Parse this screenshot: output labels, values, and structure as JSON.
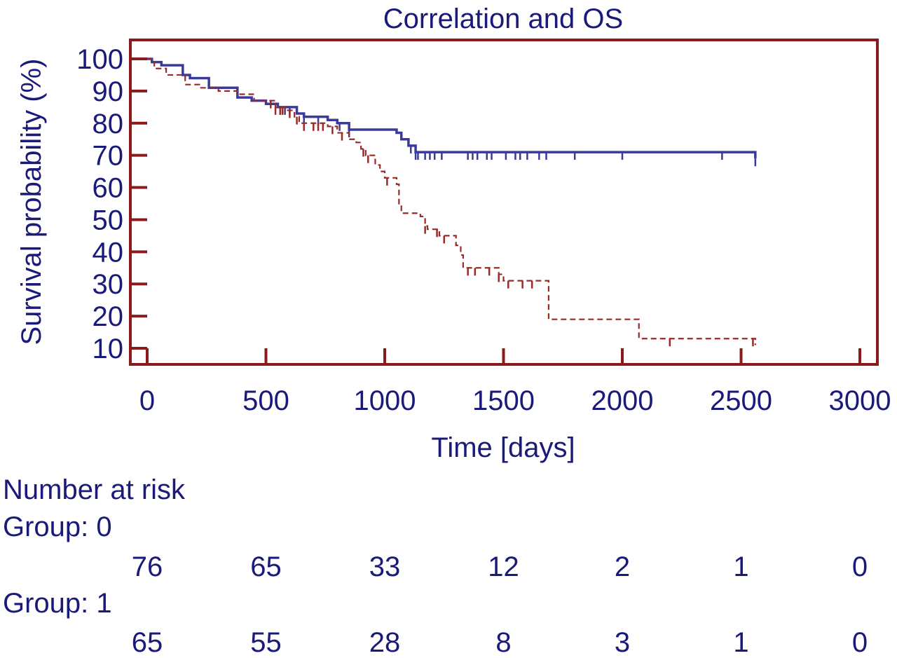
{
  "chart_data": {
    "type": "line",
    "title": "Correlation and OS",
    "xlabel": "Time [days]",
    "ylabel": "Survival probability (%)",
    "xlim": [
      0,
      3000
    ],
    "ylim": [
      5,
      102
    ],
    "x_ticks": [
      "0",
      "500",
      "1000",
      "1500",
      "2000",
      "2500",
      "3000"
    ],
    "y_ticks": [
      "100",
      "90",
      "80",
      "70",
      "60",
      "50",
      "40",
      "30",
      "20",
      "10"
    ],
    "grid": false,
    "colors": {
      "axis": "#8b1a1a",
      "text": "#1a1a7a",
      "group0": "#3a3a9a",
      "group1": "#9a2a2a"
    },
    "series": [
      {
        "line_style": "solid",
        "steps": [
          [
            0,
            100
          ],
          [
            20,
            99
          ],
          [
            60,
            98
          ],
          [
            150,
            95
          ],
          [
            180,
            94
          ],
          [
            260,
            91
          ],
          [
            300,
            91
          ],
          [
            380,
            88
          ],
          [
            440,
            87
          ],
          [
            500,
            86
          ],
          [
            550,
            85
          ],
          [
            600,
            85
          ],
          [
            630,
            83
          ],
          [
            660,
            82
          ],
          [
            700,
            82
          ],
          [
            760,
            81
          ],
          [
            800,
            80
          ],
          [
            850,
            78
          ],
          [
            950,
            78
          ],
          [
            1000,
            78
          ],
          [
            1050,
            77
          ],
          [
            1070,
            75
          ],
          [
            1100,
            73
          ],
          [
            1130,
            71
          ],
          [
            1180,
            71
          ],
          [
            2550,
            71
          ],
          [
            2560,
            69
          ]
        ],
        "censored": [
          560,
          580,
          600,
          660,
          720,
          810,
          850,
          1110,
          1130,
          1140,
          1170,
          1190,
          1210,
          1240,
          1350,
          1370,
          1390,
          1430,
          1450,
          1510,
          1550,
          1570,
          1600,
          1650,
          1680,
          1800,
          2000,
          2420,
          2560
        ]
      },
      {
        "line_style": "dashed",
        "steps": [
          [
            0,
            100
          ],
          [
            30,
            97
          ],
          [
            80,
            95
          ],
          [
            160,
            92
          ],
          [
            220,
            91
          ],
          [
            300,
            90
          ],
          [
            380,
            89
          ],
          [
            450,
            87
          ],
          [
            540,
            85
          ],
          [
            580,
            84
          ],
          [
            620,
            82
          ],
          [
            640,
            80
          ],
          [
            700,
            80
          ],
          [
            760,
            79
          ],
          [
            800,
            77
          ],
          [
            850,
            75
          ],
          [
            880,
            74
          ],
          [
            900,
            72
          ],
          [
            920,
            70
          ],
          [
            960,
            67
          ],
          [
            980,
            65
          ],
          [
            1000,
            63
          ],
          [
            1050,
            61
          ],
          [
            1060,
            55
          ],
          [
            1070,
            52
          ],
          [
            1150,
            51
          ],
          [
            1170,
            48
          ],
          [
            1180,
            47
          ],
          [
            1230,
            45
          ],
          [
            1300,
            42
          ],
          [
            1320,
            39
          ],
          [
            1330,
            35
          ],
          [
            1480,
            33
          ],
          [
            1500,
            31
          ],
          [
            1620,
            31
          ],
          [
            1690,
            19
          ],
          [
            2060,
            19
          ],
          [
            2070,
            13
          ],
          [
            2550,
            13
          ],
          [
            2560,
            11
          ]
        ],
        "censored": [
          520,
          540,
          560,
          570,
          600,
          630,
          660,
          700,
          720,
          740,
          780,
          820,
          910,
          930,
          1010,
          1170,
          1220,
          1250,
          1350,
          1380,
          1440,
          1480,
          1520,
          1580,
          1620,
          2200,
          2550
        ]
      }
    ]
  },
  "number_at_risk": {
    "title": "Number at risk",
    "groups": [
      {
        "label": "Group: 0",
        "values": [
          "76",
          "65",
          "33",
          "12",
          "2",
          "1",
          "0"
        ]
      },
      {
        "label": "Group: 1",
        "values": [
          "65",
          "55",
          "28",
          "8",
          "3",
          "1",
          "0"
        ]
      }
    ]
  }
}
